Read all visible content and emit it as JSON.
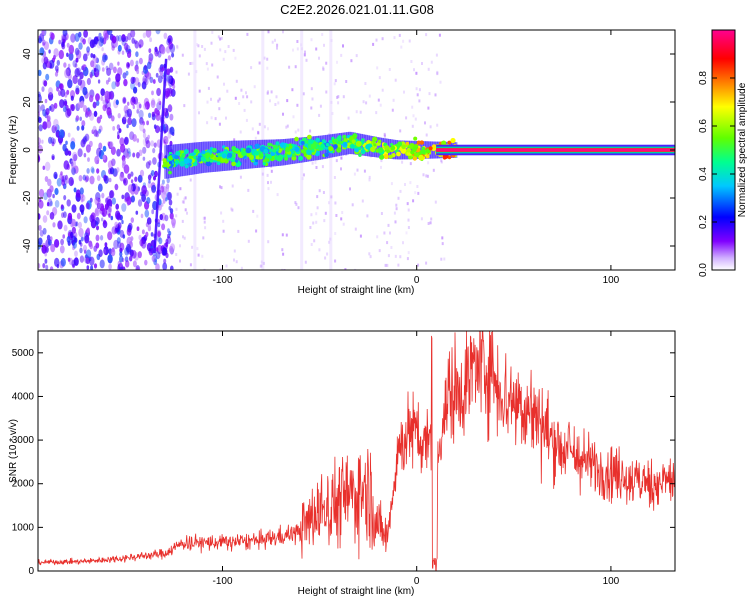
{
  "title": "C2E2.2026.021.01.11.G08",
  "chart_data": [
    {
      "type": "heatmap",
      "xlabel": "Height of straight line (km)",
      "ylabel": "Frequency (Hz)",
      "xlim": [
        -195,
        133
      ],
      "ylim": [
        -50,
        50
      ],
      "xticks": [
        -100,
        0,
        100
      ],
      "yticks": [
        -40,
        -20,
        0,
        20,
        40
      ],
      "colorbar": {
        "label": "Normalized spectral amplitude",
        "range": [
          0,
          1
        ],
        "ticks": [
          0.0,
          0.2,
          0.4,
          0.6,
          0.8
        ],
        "tick_labels": [
          "0.0",
          "0.2",
          "0.4",
          "0.6",
          "0.8"
        ],
        "colors": [
          "#ffffff",
          "#8000ff",
          "#0000ff",
          "#00c8ff",
          "#00ff80",
          "#80ff00",
          "#ffff00",
          "#ff8000",
          "#ff0000",
          "#ff0080"
        ]
      },
      "ridge": {
        "description_points_x": [
          -130,
          -110,
          -90,
          -70,
          -50,
          -35,
          -20,
          -10,
          0,
          10,
          20,
          133
        ],
        "description_points_y": [
          -5,
          -3,
          -2,
          -1,
          1,
          3,
          1,
          0,
          0,
          0,
          0,
          0
        ]
      },
      "steep_line": {
        "x": [
          -135,
          -129
        ],
        "y": [
          -43,
          38
        ]
      }
    },
    {
      "type": "line",
      "xlabel": "Height of straight line (km)",
      "ylabel": "SNR (10 * v/v)",
      "xlim": [
        -195,
        133
      ],
      "ylim": [
        0,
        5500
      ],
      "xticks": [
        -100,
        0,
        100
      ],
      "yticks": [
        0,
        1000,
        2000,
        3000,
        4000,
        5000
      ],
      "color": "#e8302c",
      "series": [
        {
          "name": "SNR",
          "x": [
            -195,
            -170,
            -150,
            -130,
            -120,
            -100,
            -80,
            -60,
            -50,
            -40,
            -30,
            -25,
            -20,
            -15,
            -10,
            -5,
            0,
            5,
            8,
            10,
            12,
            15,
            20,
            25,
            30,
            35,
            40,
            45,
            50,
            55,
            60,
            70,
            80,
            90,
            100,
            110,
            120,
            133
          ],
          "y": [
            200,
            220,
            300,
            400,
            650,
            650,
            700,
            900,
            1400,
            1600,
            1800,
            1900,
            1000,
            800,
            2700,
            3200,
            3100,
            3000,
            3100,
            1500,
            3200,
            3800,
            4200,
            4300,
            4700,
            4800,
            4500,
            4000,
            3900,
            3800,
            3600,
            3000,
            2700,
            2400,
            2300,
            2100,
            2000,
            2100
          ]
        }
      ]
    }
  ]
}
